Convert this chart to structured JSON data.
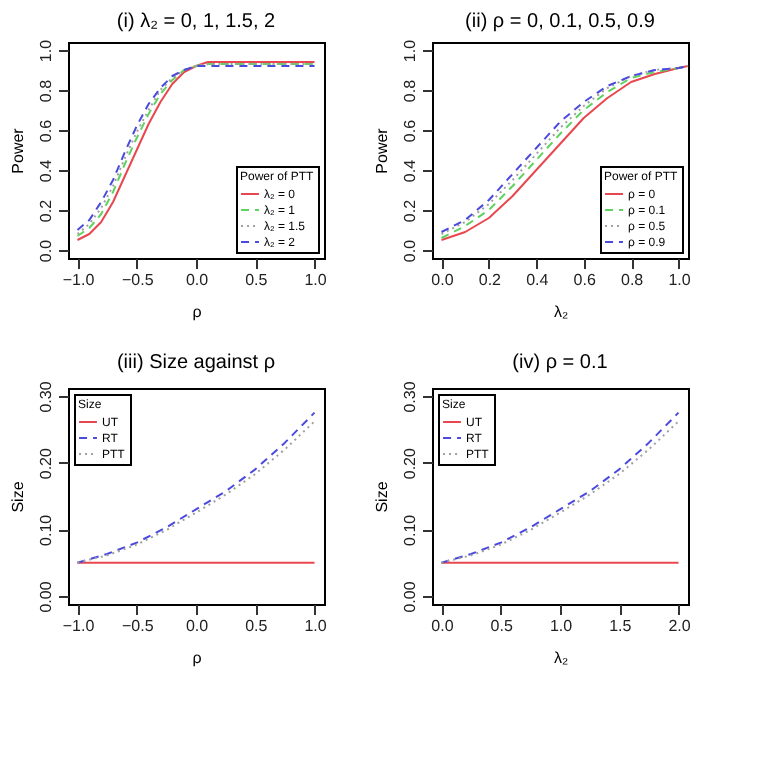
{
  "chart_data": [
    {
      "type": "line",
      "title": "(i)   λ₂ = 0, 1, 1.5, 2",
      "xlabel": "ρ",
      "ylabel": "Power",
      "legend_title": "Power of PTT",
      "legend": "bottom right",
      "grid": false,
      "x": [
        -1.0,
        -0.9,
        -0.8,
        -0.7,
        -0.6,
        -0.5,
        -0.4,
        -0.3,
        -0.2,
        -0.1,
        0.0,
        0.1,
        0.2,
        0.4,
        0.6,
        0.8,
        1.0
      ],
      "xlim": [
        -1.08,
        1.08
      ],
      "xticks": [
        {
          "value": -1,
          "label": "−1.0"
        },
        {
          "value": -0.5,
          "label": "−0.5"
        },
        {
          "value": 0,
          "label": "0.0"
        },
        {
          "value": 0.5,
          "label": "0.5"
        },
        {
          "value": 1,
          "label": "1.0"
        }
      ],
      "ylim": [
        -0.04,
        1.04
      ],
      "yticks": [
        {
          "value": 0,
          "label": "0.0"
        },
        0.2,
        0.4,
        0.6,
        0.8,
        {
          "value": 1,
          "label": "1.0"
        }
      ],
      "series": [
        {
          "name": "λ₂ = 0",
          "color": "#e8474f",
          "line_style": "solid",
          "values": [
            0.05,
            0.08,
            0.14,
            0.24,
            0.37,
            0.5,
            0.63,
            0.74,
            0.83,
            0.89,
            0.92,
            0.94,
            0.94,
            0.94,
            0.94,
            0.94,
            0.94
          ]
        },
        {
          "name": "λ₂ = 1",
          "color": "#5fd35f",
          "line_style": "dashed",
          "values": [
            0.07,
            0.11,
            0.18,
            0.29,
            0.43,
            0.56,
            0.68,
            0.78,
            0.85,
            0.9,
            0.92,
            0.93,
            0.93,
            0.93,
            0.93,
            0.93,
            0.93
          ]
        },
        {
          "name": "λ₂ = 1.5",
          "color": "#a0a0a0",
          "line_style": "dotted",
          "values": [
            0.08,
            0.13,
            0.21,
            0.32,
            0.46,
            0.59,
            0.7,
            0.8,
            0.86,
            0.9,
            0.92,
            0.93,
            0.93,
            0.93,
            0.93,
            0.93,
            0.93
          ]
        },
        {
          "name": "λ₂ = 2",
          "color": "#4a4adf",
          "line_style": "dashed",
          "values": [
            0.1,
            0.15,
            0.24,
            0.35,
            0.49,
            0.62,
            0.73,
            0.81,
            0.87,
            0.9,
            0.92,
            0.92,
            0.92,
            0.92,
            0.92,
            0.92,
            0.92
          ]
        }
      ]
    },
    {
      "type": "line",
      "title": "(ii)   ρ = 0, 0.1, 0.5, 0.9",
      "xlabel": "λ₂",
      "ylabel": "Power",
      "legend_title": "Power of PTT",
      "legend": "bottom right",
      "grid": false,
      "x": [
        0.0,
        0.1,
        0.2,
        0.3,
        0.4,
        0.5,
        0.6,
        0.7,
        0.8,
        0.9,
        1.0,
        1.04
      ],
      "xlim": [
        -0.04,
        1.04
      ],
      "xticks": [
        {
          "value": 0,
          "label": "0.0"
        },
        0.2,
        0.4,
        0.6,
        0.8,
        {
          "value": 1,
          "label": "1.0"
        }
      ],
      "ylim": [
        -0.04,
        1.04
      ],
      "yticks": [
        {
          "value": 0,
          "label": "0.0"
        },
        0.2,
        0.4,
        0.6,
        0.8,
        {
          "value": 1,
          "label": "1.0"
        }
      ],
      "series": [
        {
          "name": "ρ = 0",
          "color": "#e8474f",
          "line_style": "solid",
          "values": [
            0.05,
            0.09,
            0.16,
            0.27,
            0.4,
            0.53,
            0.66,
            0.76,
            0.84,
            0.88,
            0.91,
            0.92
          ]
        },
        {
          "name": "ρ = 0.1",
          "color": "#5fd35f",
          "line_style": "dashed",
          "values": [
            0.06,
            0.12,
            0.2,
            0.32,
            0.45,
            0.58,
            0.7,
            0.79,
            0.86,
            0.89,
            0.91,
            0.92
          ]
        },
        {
          "name": "ρ = 0.5",
          "color": "#a0a0a0",
          "line_style": "dotted",
          "values": [
            0.08,
            0.14,
            0.23,
            0.35,
            0.48,
            0.61,
            0.72,
            0.81,
            0.87,
            0.9,
            0.91,
            0.92
          ]
        },
        {
          "name": "ρ = 0.9",
          "color": "#4a4adf",
          "line_style": "dashed",
          "values": [
            0.09,
            0.15,
            0.25,
            0.38,
            0.51,
            0.64,
            0.74,
            0.82,
            0.87,
            0.9,
            0.91,
            0.92
          ]
        }
      ]
    },
    {
      "type": "line",
      "title": "(iii)   Size against   ρ",
      "xlabel": "ρ",
      "ylabel": "Size",
      "legend_title": "Size",
      "legend": "top left",
      "grid": false,
      "x": [
        -1.0,
        -0.75,
        -0.5,
        -0.25,
        0.0,
        0.25,
        0.5,
        0.75,
        1.0
      ],
      "xlim": [
        -1.08,
        1.08
      ],
      "xticks": [
        {
          "value": -1,
          "label": "−1.0"
        },
        {
          "value": -0.5,
          "label": "−0.5"
        },
        {
          "value": 0,
          "label": "0.0"
        },
        {
          "value": 0.5,
          "label": "0.5"
        },
        {
          "value": 1,
          "label": "1.0"
        }
      ],
      "ylim": [
        -0.012,
        0.312
      ],
      "yticks": [
        {
          "value": 0,
          "label": "0.00"
        },
        {
          "value": 0.1,
          "label": "0.10"
        },
        {
          "value": 0.2,
          "label": "0.20"
        },
        {
          "value": 0.3,
          "label": "0.30"
        }
      ],
      "series": [
        {
          "name": "UT",
          "color": "#e8474f",
          "line_style": "solid",
          "values": [
            0.05,
            0.05,
            0.05,
            0.05,
            0.05,
            0.05,
            0.05,
            0.05,
            0.05
          ]
        },
        {
          "name": "RT",
          "color": "#4a4adf",
          "line_style": "dashed",
          "values": [
            0.05,
            0.063,
            0.08,
            0.103,
            0.13,
            0.157,
            0.19,
            0.23,
            0.275
          ]
        },
        {
          "name": "PTT",
          "color": "#a0a0a0",
          "line_style": "dotted",
          "values": [
            0.05,
            0.061,
            0.077,
            0.099,
            0.125,
            0.152,
            0.183,
            0.22,
            0.262
          ]
        }
      ]
    },
    {
      "type": "line",
      "title": "(iv)   ρ = 0.1",
      "xlabel": "λ₂",
      "ylabel": "Size",
      "legend_title": "Size",
      "legend": "top left",
      "grid": false,
      "x": [
        0.0,
        0.25,
        0.5,
        0.75,
        1.0,
        1.25,
        1.5,
        1.75,
        2.0
      ],
      "xlim": [
        -0.08,
        2.08
      ],
      "xticks": [
        {
          "value": 0,
          "label": "0.0"
        },
        0.5,
        {
          "value": 1,
          "label": "1.0"
        },
        1.5,
        {
          "value": 2,
          "label": "2.0"
        }
      ],
      "ylim": [
        -0.012,
        0.312
      ],
      "yticks": [
        {
          "value": 0,
          "label": "0.00"
        },
        {
          "value": 0.1,
          "label": "0.10"
        },
        {
          "value": 0.2,
          "label": "0.20"
        },
        {
          "value": 0.3,
          "label": "0.30"
        }
      ],
      "series": [
        {
          "name": "UT",
          "color": "#e8474f",
          "line_style": "solid",
          "values": [
            0.05,
            0.05,
            0.05,
            0.05,
            0.05,
            0.05,
            0.05,
            0.05,
            0.05
          ]
        },
        {
          "name": "RT",
          "color": "#4a4adf",
          "line_style": "dashed",
          "values": [
            0.05,
            0.063,
            0.08,
            0.103,
            0.13,
            0.157,
            0.19,
            0.23,
            0.275
          ]
        },
        {
          "name": "PTT",
          "color": "#a0a0a0",
          "line_style": "dotted",
          "values": [
            0.05,
            0.061,
            0.077,
            0.099,
            0.125,
            0.152,
            0.183,
            0.22,
            0.262
          ]
        }
      ]
    }
  ]
}
